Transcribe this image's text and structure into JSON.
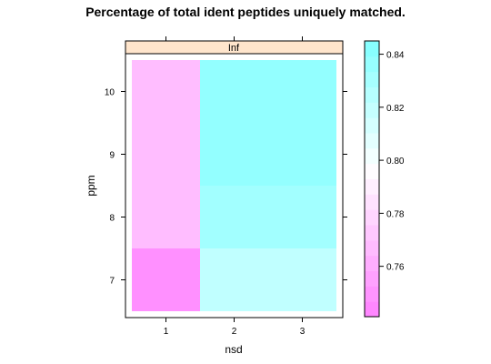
{
  "chart_data": {
    "type": "heatmap",
    "title": "Percentage of total ident peptides uniquely matched.",
    "panel_label": "Inf",
    "xlabel": "nsd",
    "ylabel": "ppm",
    "x_ticks": [
      "1",
      "2",
      "3"
    ],
    "y_ticks": [
      "7",
      "8",
      "9",
      "10"
    ],
    "colorbar_ticks": [
      "0.76",
      "0.78",
      "0.80",
      "0.82",
      "0.84"
    ],
    "colorbar_range": [
      0.741,
      0.845
    ],
    "cells": [
      {
        "nsd": 1,
        "ppm_from": 6.5,
        "ppm_to": 7.5,
        "value": 0.748
      },
      {
        "nsd": 1,
        "ppm_from": 7.5,
        "ppm_to": 10.5,
        "value": 0.768
      },
      {
        "nsd": 2,
        "ppm_from": 6.5,
        "ppm_to": 7.5,
        "value": 0.821
      },
      {
        "nsd": 2,
        "ppm_from": 7.5,
        "ppm_to": 8.5,
        "value": 0.832
      },
      {
        "nsd": 2,
        "ppm_from": 8.5,
        "ppm_to": 10.5,
        "value": 0.838
      },
      {
        "nsd": 3,
        "ppm_from": 6.5,
        "ppm_to": 7.5,
        "value": 0.821
      },
      {
        "nsd": 3,
        "ppm_from": 7.5,
        "ppm_to": 8.5,
        "value": 0.832
      },
      {
        "nsd": 3,
        "ppm_from": 8.5,
        "ppm_to": 10.5,
        "value": 0.838
      }
    ],
    "xlim": [
      0.5,
      3.5
    ],
    "ylim": [
      6.5,
      10.5
    ],
    "colors": {
      "low": "#ff80ff",
      "mid": "#ffffff",
      "high": "#80ffff",
      "strip_bg": "#ffe5cc"
    }
  }
}
